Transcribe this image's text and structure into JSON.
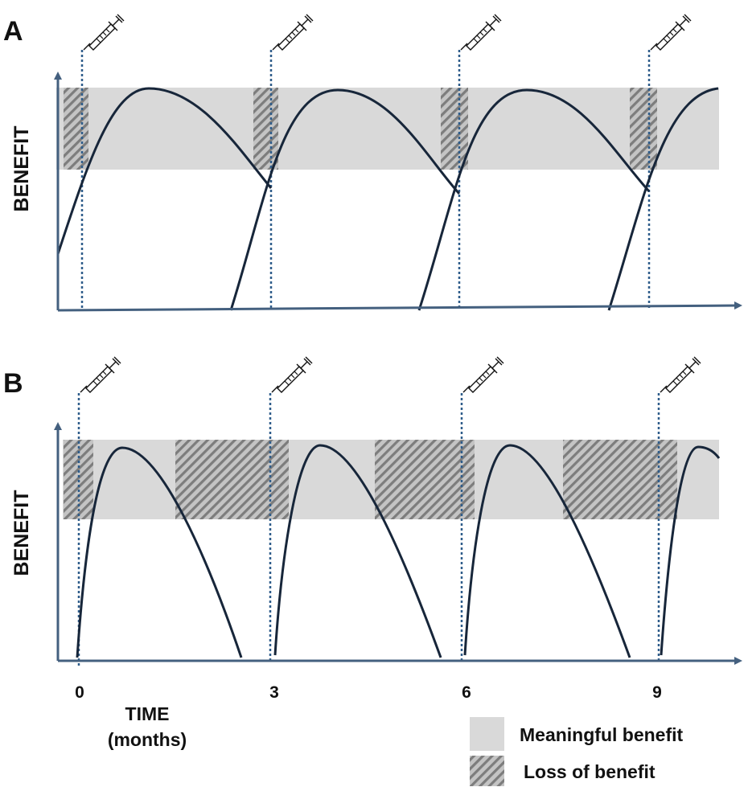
{
  "panel_a": {
    "letter": "A",
    "ylabel": "BENEFIT"
  },
  "panel_b": {
    "letter": "B",
    "ylabel": "BENEFIT"
  },
  "x_axis": {
    "ticks": [
      "0",
      "3",
      "6",
      "9"
    ],
    "label_line1": "TIME",
    "label_line2": "(months)"
  },
  "legend": {
    "meaningful": "Meaningful benefit",
    "loss": "Loss of benefit"
  },
  "icons": {
    "injection": "syringe-icon"
  },
  "colors": {
    "axis": "#44607f",
    "curve": "#17263a",
    "band": "#d9d9d9",
    "hatch_bg": "#c4c4c4",
    "hatch_line": "#7d7d7d",
    "dose_line": "#2e5c8a"
  }
}
